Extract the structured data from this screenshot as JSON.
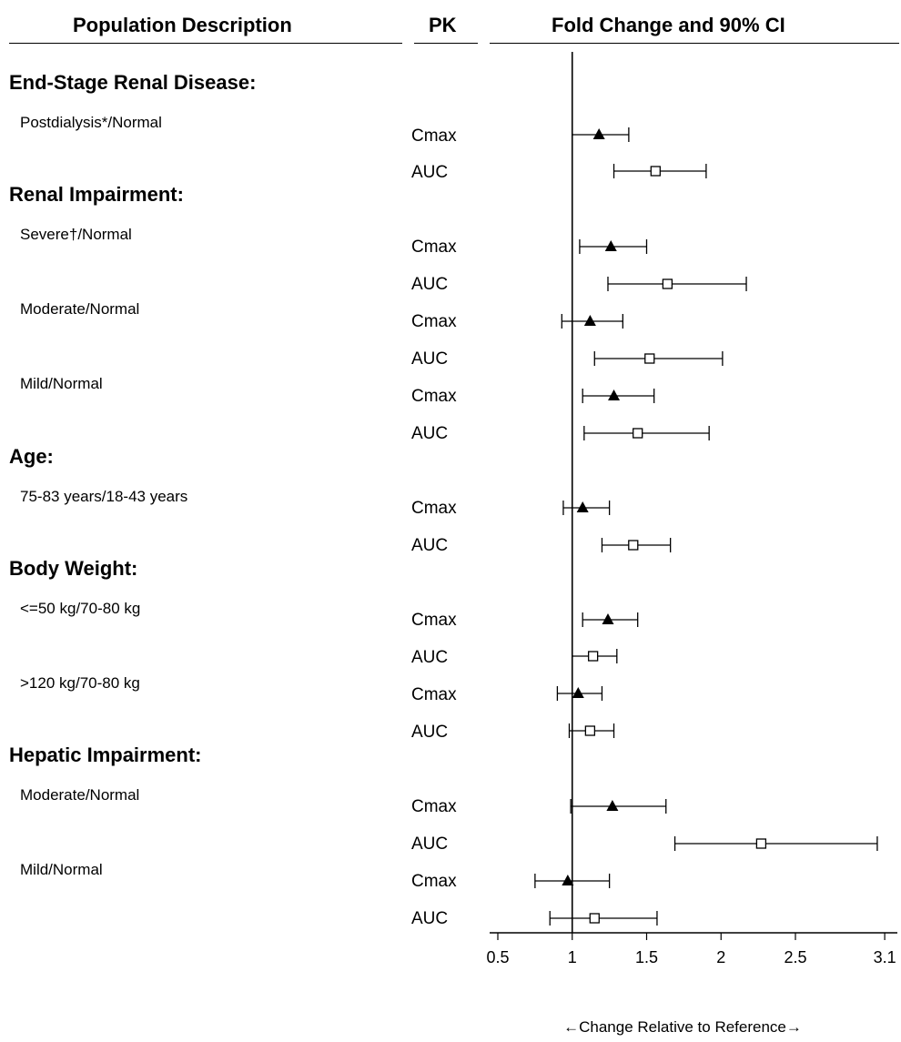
{
  "header": {
    "population": "Population Description",
    "pk": "PK",
    "fold": "Fold Change and 90% CI"
  },
  "groups": [
    {
      "label": "End-Stage Renal Disease:"
    },
    {
      "label": "Renal Impairment:"
    },
    {
      "label": "Age:"
    },
    {
      "label": "Body Weight:"
    },
    {
      "label": "Hepatic Impairment:"
    }
  ],
  "subgroups": [
    {
      "label": "Postdialysis*/Normal"
    },
    {
      "label": "Severe†/Normal"
    },
    {
      "label": "Moderate/Normal"
    },
    {
      "label": "Mild/Normal"
    },
    {
      "label": "75-83 years/18-43 years"
    },
    {
      "label": "<=50 kg/70-80 kg"
    },
    {
      "label": ">120 kg/70-80 kg"
    },
    {
      "label": "Moderate/Normal"
    },
    {
      "label": "Mild/Normal"
    }
  ],
  "chart_data": {
    "type": "forest",
    "title": "Fold Change and 90% CI",
    "xlabel": "←Change Relative to Reference→",
    "xlim": [
      0.5,
      3.1
    ],
    "xticks": [
      "0.5",
      "1",
      "1.5",
      "2",
      "2.5",
      "3.1"
    ],
    "reference_line": 1,
    "markers": {
      "Cmax": "filled-triangle",
      "AUC": "open-square"
    },
    "rows": [
      {
        "population": "Postdialysis*/Normal",
        "pk": "Cmax",
        "estimate": 1.18,
        "ci": [
          1.0,
          1.38
        ]
      },
      {
        "population": "Postdialysis*/Normal",
        "pk": "AUC",
        "estimate": 1.56,
        "ci": [
          1.28,
          1.9
        ]
      },
      {
        "population": "Severe†/Normal",
        "pk": "Cmax",
        "estimate": 1.26,
        "ci": [
          1.05,
          1.5
        ]
      },
      {
        "population": "Severe†/Normal",
        "pk": "AUC",
        "estimate": 1.64,
        "ci": [
          1.24,
          2.17
        ]
      },
      {
        "population": "Moderate/Normal",
        "pk": "Cmax",
        "estimate": 1.12,
        "ci": [
          0.93,
          1.34
        ]
      },
      {
        "population": "Moderate/Normal",
        "pk": "AUC",
        "estimate": 1.52,
        "ci": [
          1.15,
          2.01
        ]
      },
      {
        "population": "Mild/Normal",
        "pk": "Cmax",
        "estimate": 1.28,
        "ci": [
          1.07,
          1.55
        ]
      },
      {
        "population": "Mild/Normal",
        "pk": "AUC",
        "estimate": 1.44,
        "ci": [
          1.08,
          1.92
        ]
      },
      {
        "population": "75-83 years/18-43 years",
        "pk": "Cmax",
        "estimate": 1.07,
        "ci": [
          0.94,
          1.25
        ]
      },
      {
        "population": "75-83 years/18-43 years",
        "pk": "AUC",
        "estimate": 1.41,
        "ci": [
          1.2,
          1.66
        ]
      },
      {
        "population": "<=50 kg/70-80 kg",
        "pk": "Cmax",
        "estimate": 1.24,
        "ci": [
          1.07,
          1.44
        ]
      },
      {
        "population": "<=50 kg/70-80 kg",
        "pk": "AUC",
        "estimate": 1.14,
        "ci": [
          1.0,
          1.3
        ]
      },
      {
        "population": ">120 kg/70-80 kg",
        "pk": "Cmax",
        "estimate": 1.04,
        "ci": [
          0.9,
          1.2
        ]
      },
      {
        "population": ">120 kg/70-80 kg",
        "pk": "AUC",
        "estimate": 1.12,
        "ci": [
          0.98,
          1.28
        ]
      },
      {
        "population": "Moderate/Normal",
        "pk": "Cmax",
        "estimate": 1.27,
        "ci": [
          0.99,
          1.63
        ]
      },
      {
        "population": "Moderate/Normal",
        "pk": "AUC",
        "estimate": 2.27,
        "ci": [
          1.69,
          3.05
        ]
      },
      {
        "population": "Mild/Normal",
        "pk": "Cmax",
        "estimate": 0.97,
        "ci": [
          0.75,
          1.25
        ]
      },
      {
        "population": "Mild/Normal",
        "pk": "AUC",
        "estimate": 1.15,
        "ci": [
          0.85,
          1.57
        ]
      }
    ]
  }
}
